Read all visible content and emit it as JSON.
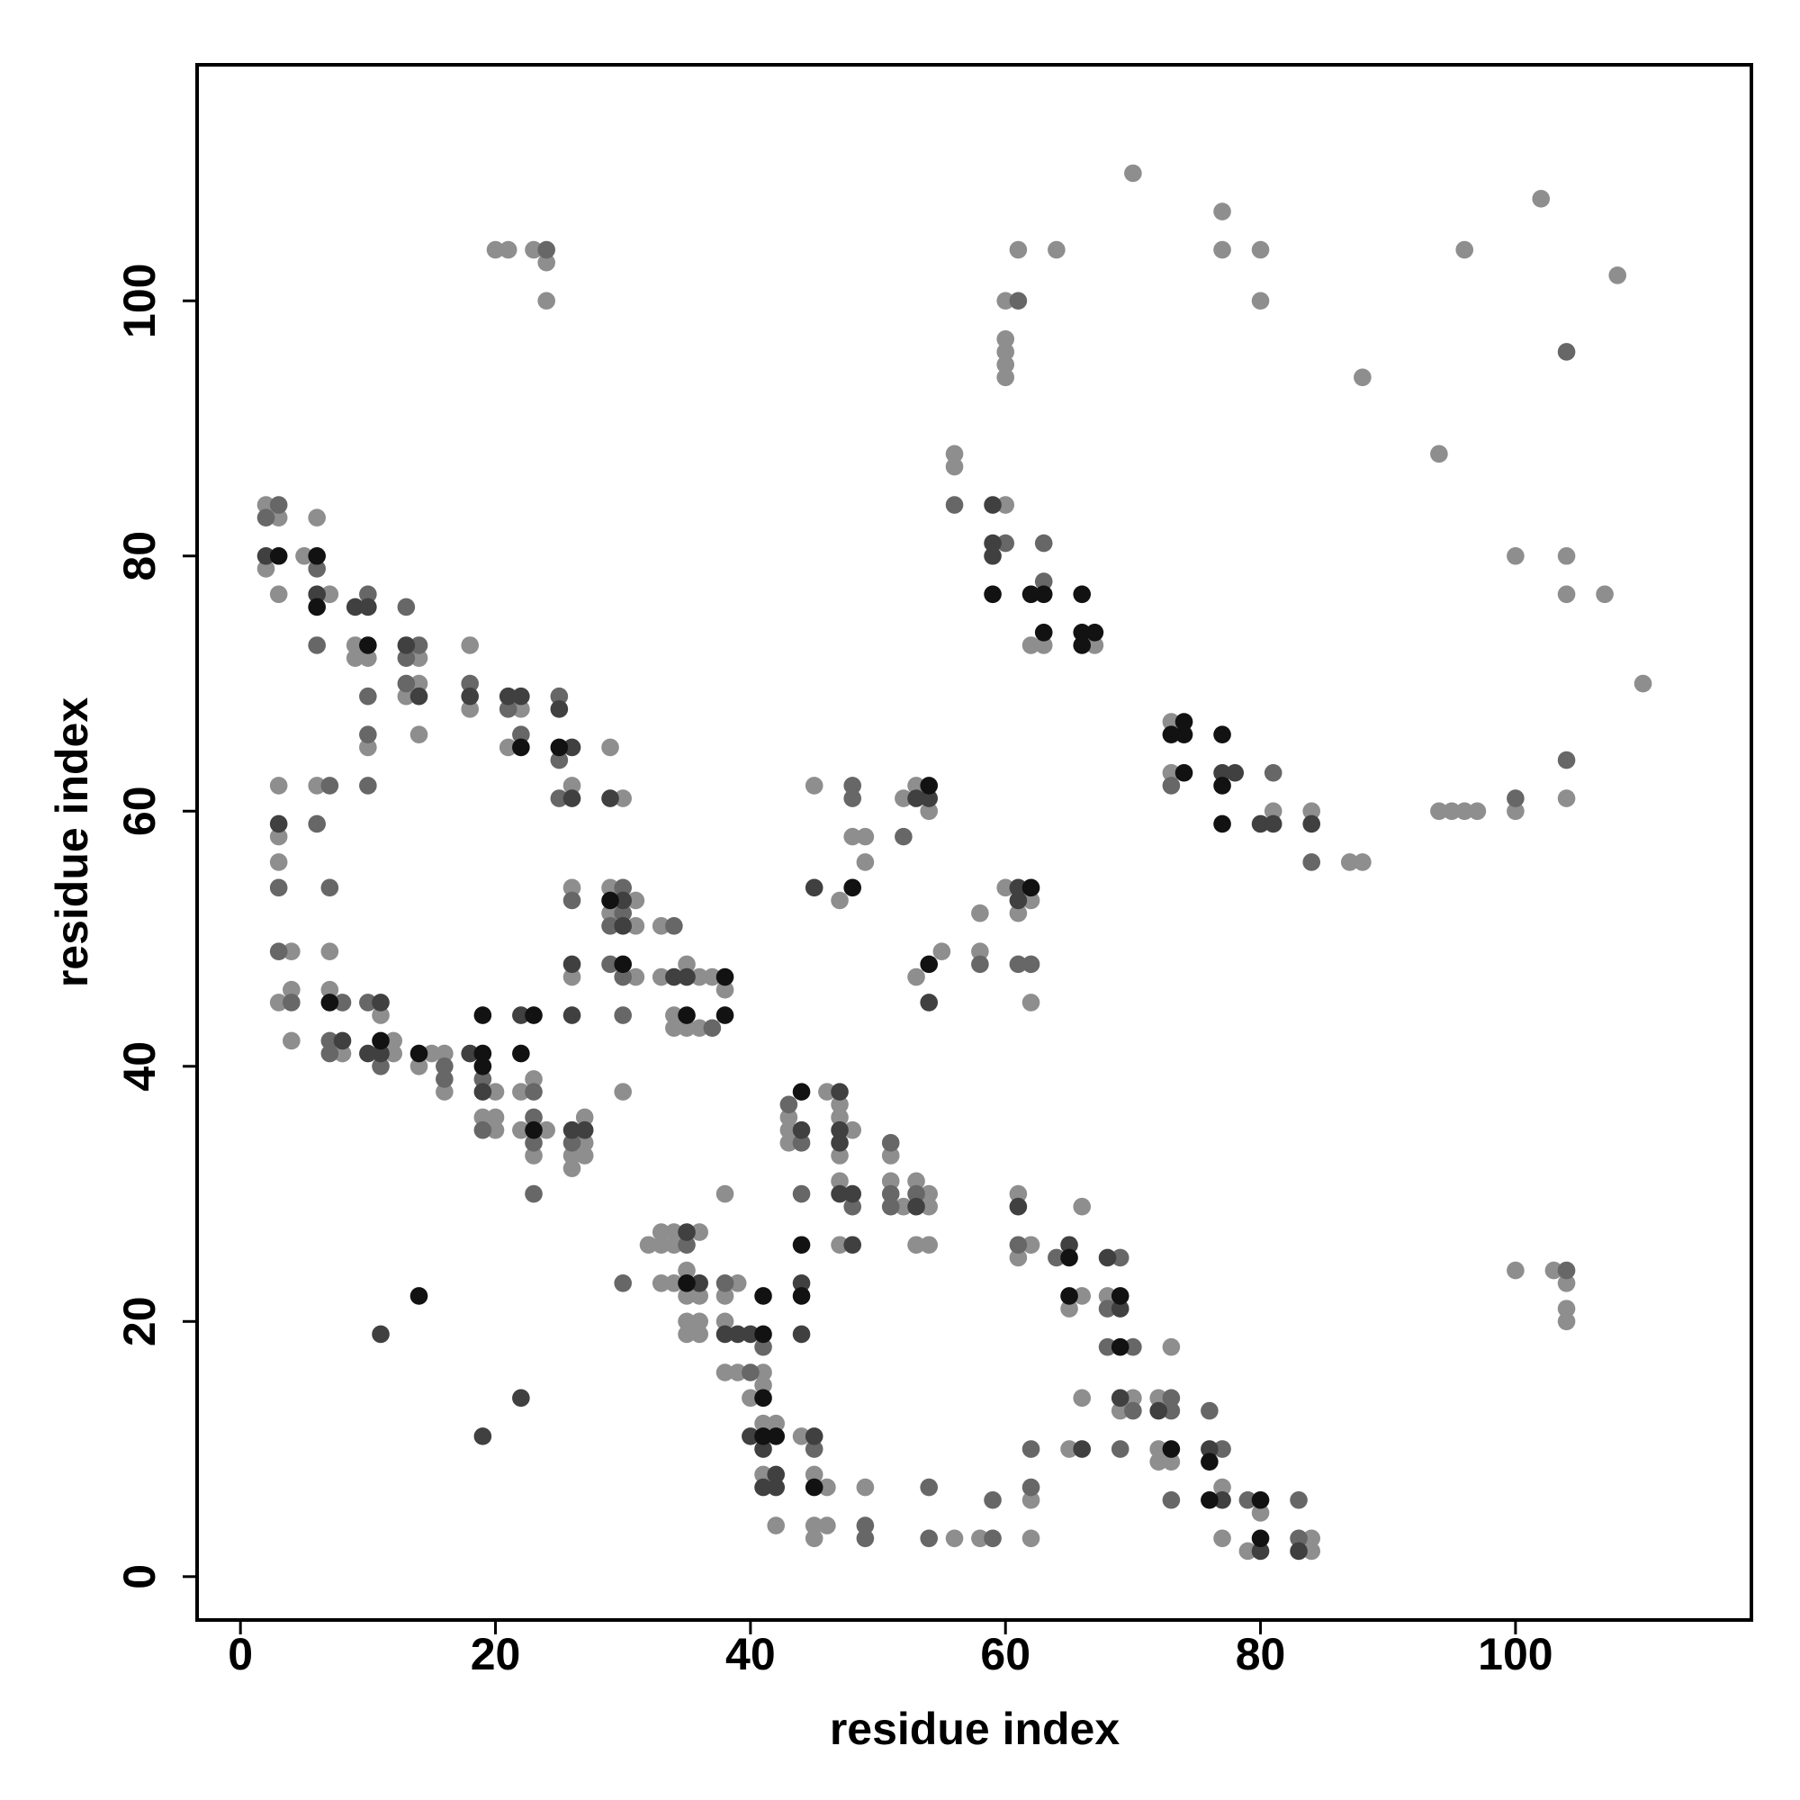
{
  "chart_data": {
    "type": "scatter",
    "xlabel": "residue index",
    "ylabel": "residue index",
    "xlim": [
      -3.4,
      118.5
    ],
    "ylim": [
      -3.4,
      118.5
    ],
    "xticks": [
      0,
      20,
      40,
      60,
      80,
      100
    ],
    "yticks": [
      0,
      20,
      40,
      60,
      80,
      100
    ],
    "series": [
      {
        "color": "#8e8e8e",
        "x": [
          20,
          21,
          23,
          24,
          24,
          70,
          77,
          77,
          80,
          80,
          61,
          64,
          60,
          60,
          60,
          60,
          60,
          102,
          96,
          108,
          88,
          94,
          56,
          56,
          60,
          67,
          62,
          63,
          100,
          104,
          104,
          107,
          110,
          73,
          73,
          81,
          84,
          87,
          88,
          94,
          95,
          96,
          97,
          100,
          104,
          2,
          3,
          2,
          3,
          6,
          5,
          7,
          9,
          9,
          10,
          14,
          14,
          13,
          10,
          14,
          18,
          18,
          22,
          21,
          26,
          29,
          30,
          3,
          3,
          3,
          6,
          4,
          7,
          4,
          3,
          4,
          7,
          8,
          11,
          12,
          12,
          15,
          16,
          14,
          16,
          20,
          19,
          20,
          20,
          22,
          23,
          22,
          24,
          23,
          27,
          27,
          26,
          27,
          26,
          26,
          26,
          29,
          31,
          29,
          31,
          31,
          30,
          33,
          33,
          35,
          36,
          37,
          38,
          34,
          34,
          35,
          36,
          45,
          52,
          53,
          54,
          48,
          49,
          49,
          47,
          55,
          58,
          58,
          53,
          60,
          62,
          61,
          62,
          43,
          43,
          43,
          46,
          47,
          47,
          48,
          47,
          47,
          47,
          51,
          51,
          52,
          53,
          54,
          54,
          53,
          54,
          32,
          33,
          34,
          33,
          34,
          36,
          33,
          34,
          35,
          35,
          36,
          35,
          36,
          35,
          36,
          38,
          39,
          38,
          38,
          38,
          39,
          41,
          40,
          41,
          41,
          42,
          41,
          42,
          44,
          45,
          46,
          45,
          46,
          45,
          49,
          56,
          58,
          62,
          62,
          61,
          62,
          61,
          66,
          66,
          65,
          68,
          70,
          69,
          66,
          65,
          72,
          73,
          72,
          72,
          73,
          77,
          77,
          80,
          79,
          84,
          84,
          100,
          103,
          104,
          104,
          104
        ],
        "values": [
          104,
          104,
          104,
          103,
          100,
          110,
          107,
          104,
          104,
          100,
          104,
          104,
          100,
          97,
          96,
          95,
          94,
          108,
          104,
          102,
          94,
          88,
          88,
          87,
          84,
          73,
          73,
          73,
          80,
          80,
          77,
          77,
          70,
          67,
          63,
          60,
          60,
          56,
          56,
          60,
          60,
          60,
          60,
          60,
          61,
          84,
          83,
          79,
          77,
          83,
          80,
          77,
          73,
          72,
          72,
          72,
          70,
          69,
          65,
          66,
          73,
          68,
          68,
          65,
          62,
          65,
          61,
          62,
          58,
          56,
          62,
          49,
          49,
          46,
          45,
          42,
          46,
          41,
          44,
          42,
          41,
          41,
          41,
          40,
          38,
          38,
          36,
          36,
          35,
          38,
          39,
          35,
          35,
          33,
          36,
          34,
          33,
          33,
          32,
          54,
          47,
          54,
          53,
          52,
          51,
          47,
          38,
          51,
          47,
          48,
          47,
          47,
          46,
          44,
          43,
          43,
          43,
          62,
          61,
          62,
          60,
          58,
          58,
          56,
          53,
          49,
          52,
          49,
          47,
          54,
          53,
          52,
          45,
          36,
          35,
          34,
          38,
          37,
          36,
          35,
          33,
          31,
          26,
          33,
          31,
          29,
          31,
          30,
          29,
          26,
          26,
          26,
          27,
          27,
          26,
          26,
          27,
          23,
          23,
          24,
          22,
          22,
          20,
          20,
          19,
          19,
          30,
          23,
          22,
          20,
          16,
          16,
          16,
          14,
          15,
          12,
          12,
          8,
          4,
          11,
          8,
          7,
          4,
          4,
          3,
          7,
          3,
          3,
          6,
          3,
          30,
          26,
          25,
          29,
          22,
          21,
          22,
          14,
          13,
          14,
          10,
          14,
          18,
          10,
          9,
          9,
          7,
          3,
          5,
          2,
          3,
          2,
          24,
          24,
          23,
          21,
          20
        ]
      },
      {
        "color": "#676767",
        "x": [
          24,
          61,
          104,
          56,
          60,
          63,
          63,
          73,
          81,
          84,
          100,
          104,
          3,
          2,
          6,
          6,
          10,
          13,
          14,
          13,
          13,
          10,
          10,
          10,
          18,
          21,
          22,
          25,
          25,
          25,
          3,
          7,
          6,
          7,
          3,
          4,
          8,
          7,
          7,
          10,
          11,
          16,
          16,
          19,
          19,
          23,
          23,
          23,
          23,
          26,
          26,
          30,
          30,
          29,
          29,
          30,
          30,
          34,
          37,
          48,
          48,
          52,
          58,
          61,
          62,
          43,
          44,
          48,
          44,
          51,
          51,
          51,
          53,
          35,
          30,
          38,
          41,
          40,
          45,
          49,
          49,
          54,
          54,
          59,
          59,
          62,
          62,
          61,
          64,
          69,
          68,
          68,
          70,
          70,
          69,
          73,
          73,
          73,
          76,
          77,
          79,
          83,
          83,
          104
        ],
        "values": [
          104,
          100,
          96,
          84,
          81,
          78,
          81,
          62,
          63,
          56,
          61,
          64,
          84,
          83,
          79,
          73,
          77,
          76,
          73,
          72,
          70,
          69,
          66,
          62,
          70,
          68,
          66,
          69,
          64,
          61,
          54,
          62,
          59,
          54,
          49,
          45,
          45,
          42,
          41,
          45,
          40,
          40,
          39,
          39,
          35,
          38,
          36,
          34,
          30,
          34,
          53,
          54,
          52,
          51,
          48,
          47,
          44,
          51,
          43,
          62,
          61,
          58,
          48,
          48,
          48,
          37,
          34,
          29,
          30,
          34,
          30,
          29,
          30,
          26,
          23,
          23,
          18,
          16,
          10,
          4,
          3,
          7,
          3,
          3,
          6,
          10,
          7,
          26,
          25,
          25,
          21,
          18,
          18,
          13,
          10,
          14,
          13,
          6,
          13,
          10,
          6,
          6,
          3,
          24
        ]
      },
      {
        "color": "#404040",
        "x": [
          59,
          59,
          59,
          77,
          78,
          80,
          81,
          84,
          2,
          6,
          9,
          10,
          13,
          14,
          18,
          21,
          22,
          25,
          26,
          26,
          29,
          3,
          8,
          11,
          10,
          11,
          18,
          19,
          22,
          26,
          27,
          26,
          26,
          30,
          30,
          34,
          35,
          36,
          53,
          54,
          45,
          54,
          61,
          61,
          44,
          47,
          47,
          47,
          47,
          48,
          48,
          53,
          35,
          38,
          39,
          40,
          40,
          41,
          42,
          41,
          42,
          44,
          44,
          45,
          61,
          65,
          68,
          69,
          69,
          66,
          72,
          76,
          77,
          80,
          83,
          11,
          22,
          19
        ],
        "values": [
          84,
          81,
          80,
          63,
          63,
          59,
          59,
          59,
          80,
          77,
          76,
          76,
          73,
          69,
          69,
          69,
          69,
          68,
          65,
          61,
          61,
          59,
          42,
          45,
          41,
          41,
          41,
          38,
          44,
          35,
          35,
          48,
          44,
          53,
          51,
          47,
          47,
          23,
          61,
          61,
          54,
          45,
          54,
          53,
          35,
          38,
          35,
          34,
          30,
          30,
          26,
          29,
          27,
          19,
          19,
          19,
          11,
          10,
          8,
          7,
          7,
          23,
          19,
          11,
          29,
          26,
          25,
          21,
          14,
          10,
          13,
          10,
          6,
          2,
          2,
          19,
          14,
          11
        ]
      },
      {
        "color": "#121212",
        "x": [
          59,
          62,
          63,
          66,
          63,
          66,
          67,
          66,
          74,
          73,
          74,
          77,
          74,
          77,
          77,
          3,
          6,
          6,
          10,
          22,
          25,
          7,
          11,
          14,
          19,
          19,
          19,
          23,
          22,
          23,
          29,
          30,
          38,
          35,
          38,
          54,
          48,
          54,
          62,
          44,
          44,
          35,
          41,
          41,
          41,
          42,
          41,
          44,
          45,
          65,
          65,
          69,
          69,
          73,
          76,
          76,
          80,
          80,
          14
        ],
        "values": [
          77,
          77,
          77,
          77,
          74,
          74,
          74,
          73,
          67,
          66,
          66,
          66,
          63,
          62,
          59,
          80,
          80,
          76,
          73,
          65,
          65,
          45,
          42,
          41,
          41,
          40,
          44,
          44,
          41,
          35,
          53,
          48,
          47,
          44,
          44,
          62,
          54,
          48,
          54,
          38,
          26,
          23,
          19,
          14,
          11,
          11,
          22,
          22,
          7,
          25,
          22,
          22,
          18,
          10,
          9,
          6,
          6,
          3,
          22
        ]
      }
    ]
  }
}
